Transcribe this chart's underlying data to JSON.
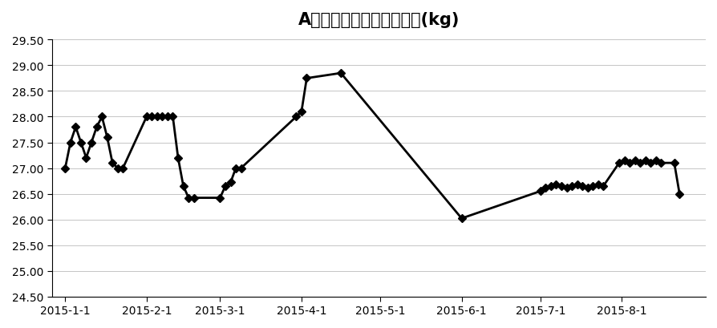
{
  "title": "A型号生产线线引发剂用量(kg)",
  "xlabels": [
    "2015-1-1",
    "2015-2-1",
    "2015-3-1",
    "2015-4-1",
    "2015-5-1",
    "2015-6-1",
    "2015-7-1",
    "2015-8-1"
  ],
  "ylim": [
    24.5,
    29.5
  ],
  "yticks": [
    24.5,
    25.0,
    25.5,
    26.0,
    26.5,
    27.0,
    27.5,
    28.0,
    28.5,
    29.0,
    29.5
  ],
  "line_color": "#000000",
  "marker": "D",
  "markersize": 5,
  "linewidth": 2.0,
  "data_x": [
    1,
    3,
    5,
    7,
    9,
    11,
    13,
    15,
    17,
    19,
    21,
    23,
    32,
    34,
    36,
    38,
    40,
    42,
    44,
    46,
    48,
    50,
    60,
    62,
    64,
    66,
    68,
    89,
    91,
    93,
    106,
    152,
    182,
    184,
    186,
    188,
    190,
    192,
    194,
    196,
    198,
    200,
    202,
    204,
    206,
    212,
    214,
    216,
    218,
    220,
    222,
    224,
    226,
    228,
    233,
    235
  ],
  "data_y": [
    27.0,
    27.5,
    27.8,
    27.5,
    27.2,
    27.5,
    27.8,
    28.0,
    27.6,
    27.1,
    27.0,
    27.0,
    28.0,
    28.0,
    28.0,
    28.0,
    28.0,
    28.0,
    27.2,
    26.65,
    26.42,
    26.42,
    26.42,
    26.65,
    26.72,
    27.0,
    27.0,
    28.0,
    28.1,
    28.75,
    28.85,
    26.02,
    26.55,
    26.62,
    26.65,
    26.68,
    26.65,
    26.62,
    26.65,
    26.68,
    26.65,
    26.62,
    26.65,
    26.68,
    26.65,
    27.1,
    27.15,
    27.1,
    27.15,
    27.1,
    27.15,
    27.1,
    27.15,
    27.1,
    27.1,
    26.5
  ],
  "xtick_positions": [
    1,
    32,
    60,
    91,
    121,
    152,
    182,
    213
  ],
  "xlim": [
    -4,
    245
  ],
  "background_color": "#ffffff",
  "title_fontsize": 15,
  "tick_fontsize": 10
}
